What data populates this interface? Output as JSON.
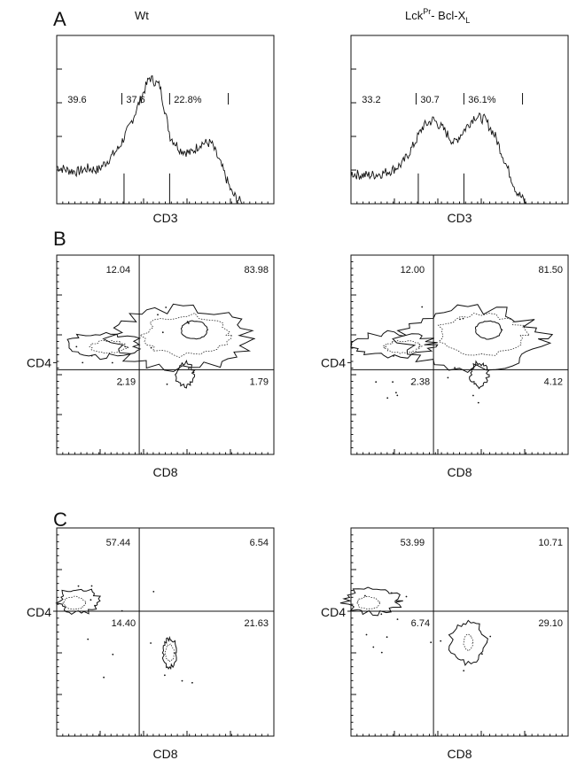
{
  "panel_letters": [
    "A",
    "B",
    "C"
  ],
  "column_headers": {
    "left": "Wt",
    "right_main": "Lck",
    "right_sup": "Pr",
    "right_tail": "- Bcl-X",
    "right_sub": "L"
  },
  "chart_data": [
    {
      "id": "A-left",
      "type": "line",
      "panel": "A",
      "column": "Wt",
      "xlabel": "CD3",
      "ylabel": "",
      "gate_labels": [
        "39.6",
        "37.6",
        "22.8%"
      ],
      "x": [
        0,
        0.05,
        0.1,
        0.15,
        0.2,
        0.25,
        0.3,
        0.35,
        0.4,
        0.45,
        0.5,
        0.55,
        0.6,
        0.65,
        0.7,
        0.75,
        0.8,
        0.85,
        0.9,
        0.95,
        1
      ],
      "y": [
        0.22,
        0.2,
        0.19,
        0.21,
        0.2,
        0.26,
        0.33,
        0.45,
        0.6,
        0.75,
        0.7,
        0.4,
        0.32,
        0.3,
        0.36,
        0.36,
        0.22,
        0.06,
        0,
        0,
        0
      ]
    },
    {
      "id": "A-right",
      "type": "line",
      "panel": "A",
      "column": "Lck-Bcl-XL",
      "xlabel": "CD3",
      "ylabel": "",
      "gate_labels": [
        "33.2",
        "30.7",
        "36.1%"
      ],
      "x": [
        0,
        0.05,
        0.1,
        0.15,
        0.2,
        0.25,
        0.3,
        0.35,
        0.4,
        0.45,
        0.5,
        0.55,
        0.6,
        0.65,
        0.7,
        0.75,
        0.8,
        0.85,
        0.9,
        0.95,
        1
      ],
      "y": [
        0.18,
        0.17,
        0.17,
        0.18,
        0.2,
        0.24,
        0.34,
        0.46,
        0.5,
        0.44,
        0.36,
        0.44,
        0.52,
        0.5,
        0.4,
        0.24,
        0.08,
        0,
        0,
        0,
        0
      ]
    },
    {
      "id": "B-left",
      "type": "scatter",
      "panel": "B",
      "column": "Wt",
      "xlabel": "CD8",
      "ylabel": "CD4",
      "quadrants": {
        "upper_left": "12.04",
        "upper_right": "83.98",
        "lower_left": "2.19",
        "lower_right": "1.79"
      }
    },
    {
      "id": "B-right",
      "type": "scatter",
      "panel": "B",
      "column": "Lck-Bcl-XL",
      "xlabel": "CD8",
      "ylabel": "CD4",
      "quadrants": {
        "upper_left": "12.00",
        "upper_right": "81.50",
        "lower_left": "2.38",
        "lower_right": "4.12"
      }
    },
    {
      "id": "C-left",
      "type": "scatter",
      "panel": "C",
      "column": "Wt",
      "xlabel": "CD8",
      "ylabel": "CD4",
      "quadrants": {
        "upper_left": "57.44",
        "upper_right": "6.54",
        "lower_left": "14.40",
        "lower_right": "21.63"
      }
    },
    {
      "id": "C-right",
      "type": "scatter",
      "panel": "C",
      "column": "Lck-Bcl-XL",
      "xlabel": "CD8",
      "ylabel": "CD4",
      "quadrants": {
        "upper_left": "53.99",
        "upper_right": "10.71",
        "lower_left": "6.74",
        "lower_right": "29.10"
      }
    }
  ]
}
